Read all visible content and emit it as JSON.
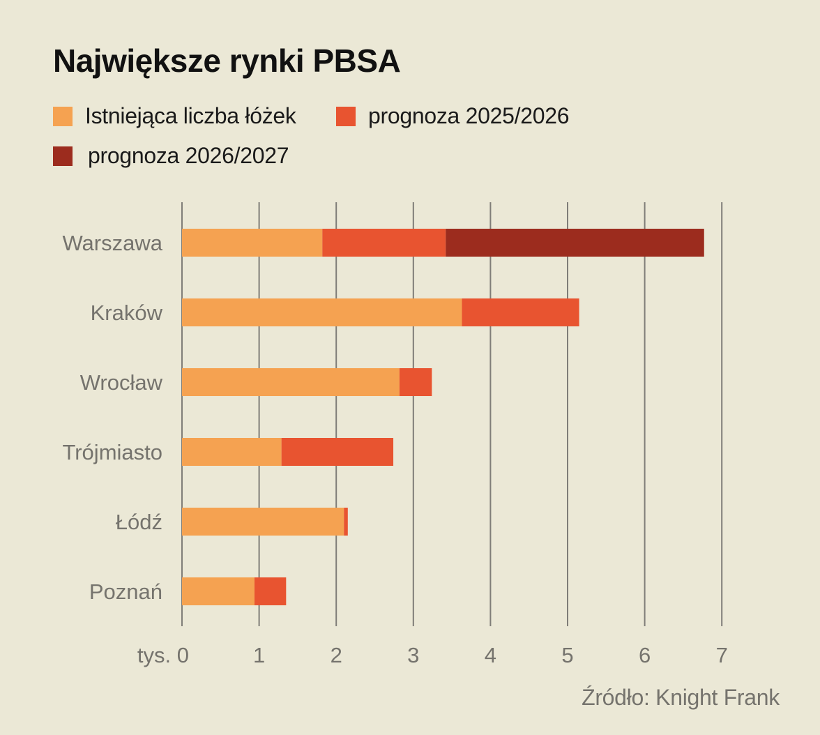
{
  "chart_data": {
    "type": "bar",
    "orientation": "horizontal",
    "stacked": true,
    "title": "Największe rynki PBSA",
    "categories": [
      "Warszawa",
      "Kraków",
      "Wrocław",
      "Trójmiasto",
      "Łódź",
      "Poznań"
    ],
    "series": [
      {
        "name": "Istniejąca liczba łóżek",
        "color": "#f5a251",
        "values": [
          1.82,
          3.63,
          2.82,
          1.29,
          2.1,
          0.94
        ]
      },
      {
        "name": "prognoza 2025/2026",
        "color": "#e85430",
        "values": [
          1.6,
          1.52,
          0.42,
          1.45,
          0.05,
          0.41
        ]
      },
      {
        "name": "prognoza 2026/2027",
        "color": "#9c2c1e",
        "values": [
          3.35,
          0,
          0,
          0,
          0,
          0
        ]
      }
    ],
    "x_ticks": [
      "tys. 0",
      "1",
      "2",
      "3",
      "4",
      "5",
      "6",
      "7"
    ],
    "xlim": [
      0,
      7
    ],
    "grid": true,
    "legend_position": "top-left",
    "source": "Źródło: Knight Frank"
  }
}
